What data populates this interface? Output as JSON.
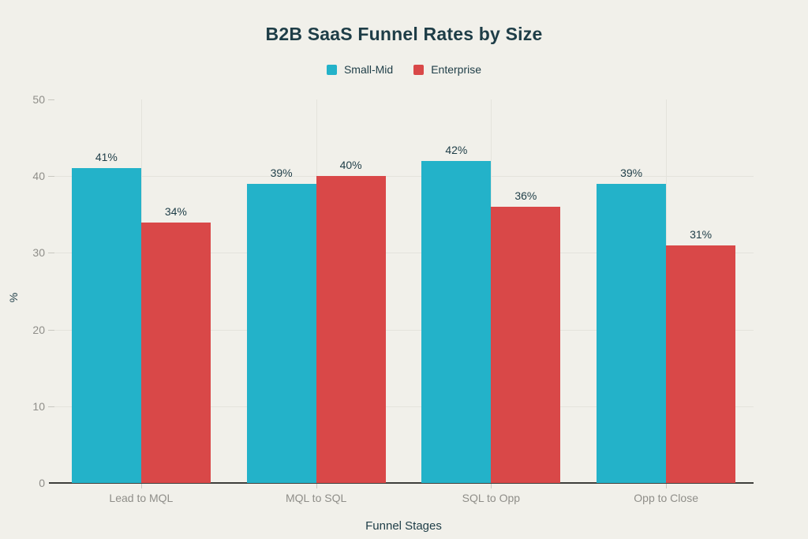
{
  "colors": {
    "background": "#f1f0ea",
    "text_dark": "#1e3d47",
    "muted_text": "#8f8e89",
    "grid": "#e4e3dc",
    "tick": "#c8c7c0",
    "axis": "#3e3e3b"
  },
  "chart_data": {
    "type": "bar",
    "title": "B2B SaaS Funnel Rates by Size",
    "categories": [
      "Lead to MQL",
      "MQL to SQL",
      "SQL to Opp",
      "Opp to Close"
    ],
    "series": [
      {
        "name": "Small-Mid",
        "color": "#23b2c9",
        "values": [
          41,
          39,
          42,
          39
        ]
      },
      {
        "name": "Enterprise",
        "color": "#d94848",
        "values": [
          34,
          40,
          36,
          31
        ]
      }
    ],
    "value_suffix": "%",
    "data_labels": [
      "41%",
      "34%",
      "39%",
      "40%",
      "42%",
      "36%",
      "39%",
      "31%"
    ],
    "xlabel": "Funnel Stages",
    "ylabel": "%",
    "ylim": [
      0,
      50
    ],
    "yticks": [
      "0",
      "10",
      "20",
      "30",
      "40",
      "50"
    ],
    "grid": true,
    "legend_position": "top"
  }
}
